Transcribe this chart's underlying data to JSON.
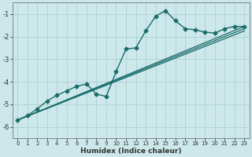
{
  "title": "",
  "xlabel": "Humidex (Indice chaleur)",
  "bg_color": "#cce8ea",
  "grid_color": "#aacccc",
  "line_color": "#1a6b6b",
  "xlim": [
    -0.5,
    23.5
  ],
  "ylim": [
    -6.5,
    -0.5
  ],
  "yticks": [
    -6,
    -5,
    -4,
    -3,
    -2,
    -1
  ],
  "xticks": [
    0,
    1,
    2,
    3,
    4,
    5,
    6,
    7,
    8,
    9,
    10,
    11,
    12,
    13,
    14,
    15,
    16,
    17,
    18,
    19,
    20,
    21,
    22,
    23
  ],
  "main_series": {
    "x": [
      0,
      1,
      2,
      3,
      4,
      5,
      6,
      7,
      8,
      9,
      10,
      11,
      12,
      13,
      14,
      15,
      16,
      17,
      18,
      19,
      20,
      21,
      22,
      23
    ],
    "y": [
      -5.7,
      -5.5,
      -5.2,
      -4.85,
      -4.6,
      -4.4,
      -4.2,
      -4.1,
      -4.55,
      -4.65,
      -3.55,
      -2.55,
      -2.5,
      -1.75,
      -1.1,
      -0.85,
      -1.3,
      -1.65,
      -1.7,
      -1.8,
      -1.85,
      -1.65,
      -1.55,
      -1.55
    ]
  },
  "straight_lines": [
    {
      "x": [
        0,
        23
      ],
      "y": [
        -5.7,
        -1.55
      ]
    },
    {
      "x": [
        0,
        23
      ],
      "y": [
        -5.7,
        -1.65
      ]
    },
    {
      "x": [
        0,
        23
      ],
      "y": [
        -5.7,
        -1.75
      ]
    }
  ]
}
